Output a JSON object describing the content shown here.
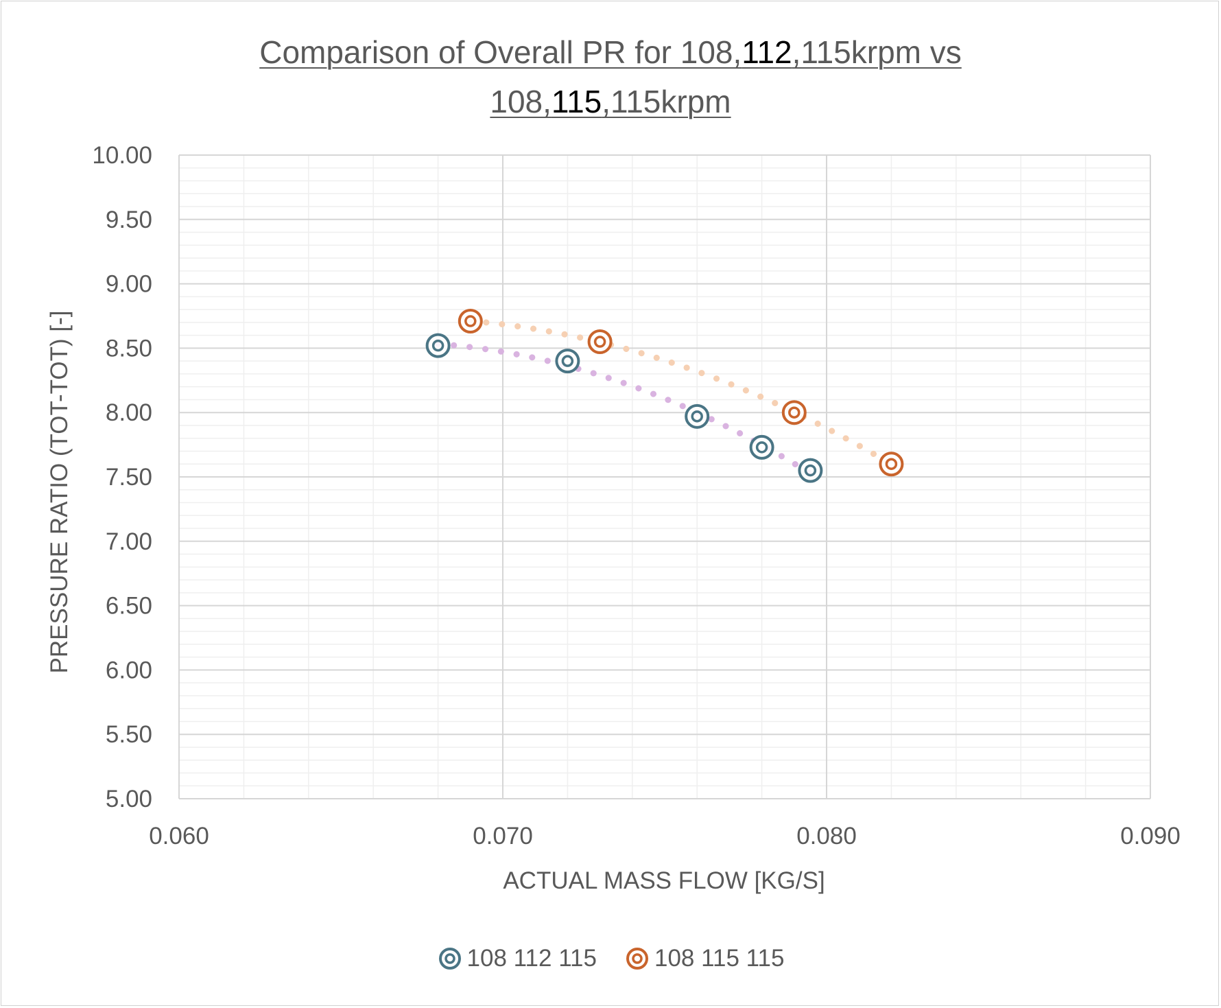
{
  "chart_data": {
    "type": "scatter",
    "title": {
      "line1_pre": "Comparison of Overall PR for 108,",
      "line1_hl": "112",
      "line1_post": ",115krpm vs",
      "line2_pre": "108,",
      "line2_hl": "115",
      "line2_post": ",115krpm"
    },
    "xlabel": "ACTUAL MASS FLOW [KG/S]",
    "ylabel": "PRESSURE RATIO (TOT-TOT) [-]",
    "xlim": [
      0.06,
      0.09
    ],
    "ylim": [
      5.0,
      10.0
    ],
    "x_major_ticks": [
      0.06,
      0.07,
      0.08,
      0.09
    ],
    "x_tick_labels": [
      "0.060",
      "0.070",
      "0.080",
      "0.090"
    ],
    "x_minor_step": 0.002,
    "y_major_ticks": [
      5.0,
      5.5,
      6.0,
      6.5,
      7.0,
      7.5,
      8.0,
      8.5,
      9.0,
      9.5,
      10.0
    ],
    "y_tick_labels": [
      "5.00",
      "5.50",
      "6.00",
      "6.50",
      "7.00",
      "7.50",
      "8.00",
      "8.50",
      "9.00",
      "9.50",
      "10.00"
    ],
    "y_minor_step": 0.1,
    "legend_position": "bottom",
    "series": [
      {
        "name": "108 112 115",
        "color": "#4a7585",
        "x": [
          0.068,
          0.072,
          0.076,
          0.078,
          0.0795
        ],
        "y": [
          8.52,
          8.4,
          7.97,
          7.73,
          7.55
        ],
        "trendline": {
          "type": "polynomial",
          "style": "dotted",
          "color": "#d9b3e0"
        }
      },
      {
        "name": "108 115 115",
        "color": "#c9642c",
        "x": [
          0.069,
          0.073,
          0.079,
          0.082
        ],
        "y": [
          8.71,
          8.55,
          8.0,
          7.6
        ],
        "trendline": {
          "type": "polynomial",
          "style": "dotted",
          "color": "#f6d0b3"
        }
      }
    ]
  }
}
